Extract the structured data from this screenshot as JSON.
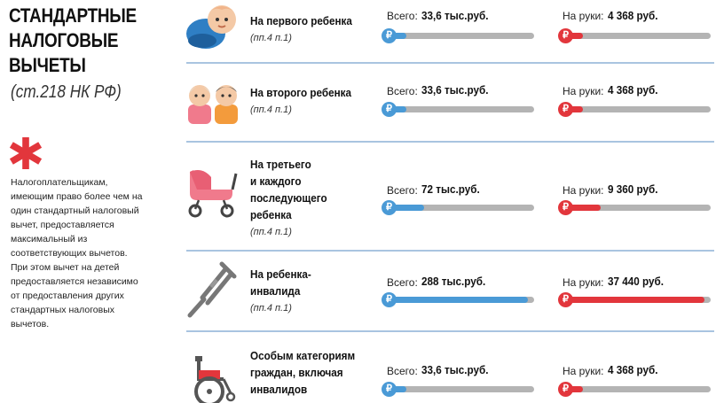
{
  "title": "СТАНДАРТНЫЕ НАЛОГОВЫЕ ВЫЧЕТЫ",
  "subtitle": "(ст.218 НК РФ)",
  "note": "Налогоплательщикам, имеющим право более чем на один стандартный налоговый вычет, предоставляется максимальный из соответствующих вычетов. При этом вычет на детей предоставляется независимо от предоставления других стандартных налоговых вычетов.",
  "colors": {
    "blue": "#4a9ad6",
    "red": "#e2363c",
    "divider": "#a9c4e0",
    "bar_bg": "#b4b4b4"
  },
  "labels": {
    "total": "Всего:",
    "net": "На руки:",
    "currency_symbol": "₽"
  },
  "rows": [
    {
      "label": "На первого ребенка",
      "ref": "(пп.4 п.1)",
      "total": "33,6 тыс.руб.",
      "net": "4 368 руб.",
      "total_fill": 0.14,
      "net_fill": 0.14,
      "icon": "baby-icon"
    },
    {
      "label": "На второго ребенка",
      "ref": "(пп.4 п.1)",
      "total": "33,6 тыс.руб.",
      "net": "4 368 руб.",
      "total_fill": 0.14,
      "net_fill": 0.14,
      "icon": "grandparents-icon"
    },
    {
      "label": "На третьего и каждого последующего ребенка",
      "ref": "(пп.4 п.1)",
      "total": "72 тыс.руб.",
      "net": "9 360 руб.",
      "total_fill": 0.26,
      "net_fill": 0.26,
      "icon": "stroller-icon"
    },
    {
      "label": "На ребенка-инвалида",
      "ref": "(пп.4 п.1)",
      "total": "288 тыс.руб.",
      "net": "37 440 руб.",
      "total_fill": 0.96,
      "net_fill": 0.96,
      "icon": "crutch-icon"
    },
    {
      "label": "Особым категориям граждан, включая инвалидов",
      "ref": "",
      "total": "33,6 тыс.руб.",
      "net": "4 368 руб.",
      "total_fill": 0.14,
      "net_fill": 0.14,
      "icon": "wheelchair-icon"
    }
  ],
  "row_label_lines": [
    [
      "На первого ребенка"
    ],
    [
      "На второго ребенка"
    ],
    [
      "На третьего",
      "и каждого",
      "последующего",
      "ребенка"
    ],
    [
      "На ребенка-",
      "инвалида"
    ],
    [
      "Особым категориям",
      "граждан, включая",
      "инвалидов"
    ]
  ]
}
